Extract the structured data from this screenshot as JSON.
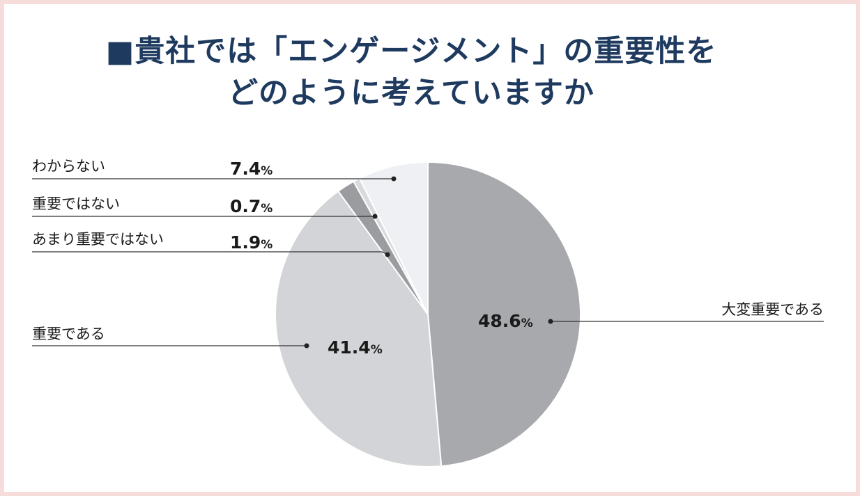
{
  "title_line1": "■貴社では「エンゲージメント」の重要性を",
  "title_line2": "どのように考えていますか",
  "colors": {
    "frame_border": "#f7dcdc",
    "title": "#1e3a5f"
  },
  "chart_data": {
    "type": "pie",
    "title": "■貴社では「エンゲージメント」の重要性を どのように考えていますか",
    "unit": "%",
    "slices": [
      {
        "label": "大変重要である",
        "value": 48.6,
        "value_text": "48.6",
        "color": "#a8a9ad"
      },
      {
        "label": "重要である",
        "value": 41.4,
        "value_text": "41.4",
        "color": "#d3d4d7"
      },
      {
        "label": "あまり重要ではない",
        "value": 1.9,
        "value_text": "1.9",
        "color": "#9b9ca0"
      },
      {
        "label": "重要ではない",
        "value": 0.7,
        "value_text": "0.7",
        "color": "#d9dadc"
      },
      {
        "label": "わからない",
        "value": 7.4,
        "value_text": "7.4",
        "color": "#eef0f3"
      }
    ]
  }
}
